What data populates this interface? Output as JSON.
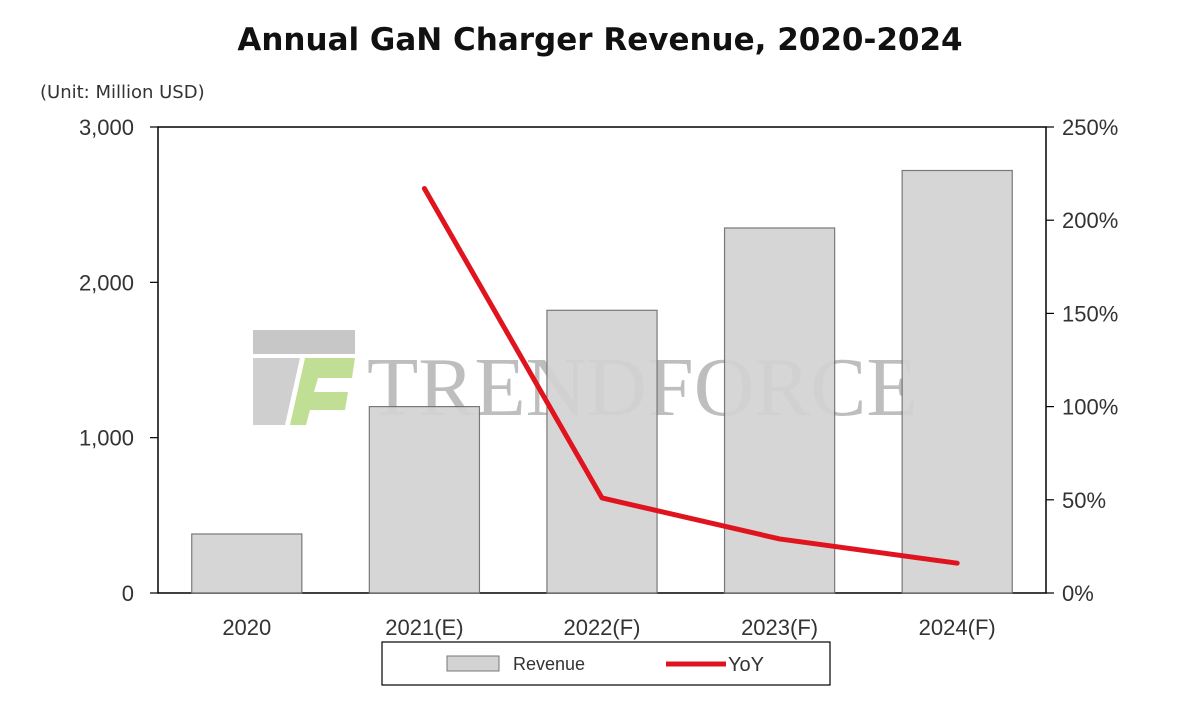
{
  "chart_data": {
    "type": "bar",
    "title": "Annual GaN Charger Revenue, 2020-2024",
    "unit_note": "(Unit: Million USD)",
    "categories": [
      "2020",
      "2021(E)",
      "2022(F)",
      "2023(F)",
      "2024(F)"
    ],
    "series": [
      {
        "name": "Revenue",
        "type": "bar",
        "axis": "left",
        "color": "#d3d3d3",
        "values": [
          380,
          1200,
          1820,
          2350,
          2720
        ]
      },
      {
        "name": "YoY",
        "type": "line",
        "axis": "right",
        "color": "#e0141e",
        "values": [
          null,
          217,
          51,
          29,
          16
        ]
      }
    ],
    "y_left": {
      "ylim": [
        0,
        3000
      ],
      "ticks": [
        0,
        1000,
        2000,
        3000
      ],
      "tick_labels": [
        "0",
        "1,000",
        "2,000",
        "3,000"
      ]
    },
    "y_right": {
      "ylim": [
        0,
        250
      ],
      "ticks": [
        0,
        50,
        100,
        150,
        200,
        250
      ],
      "tick_labels": [
        "0%",
        "50%",
        "100%",
        "150%",
        "200%",
        "250%"
      ]
    },
    "grid": false,
    "legend_position": "bottom-center",
    "watermark": "TRENDFORCE"
  }
}
